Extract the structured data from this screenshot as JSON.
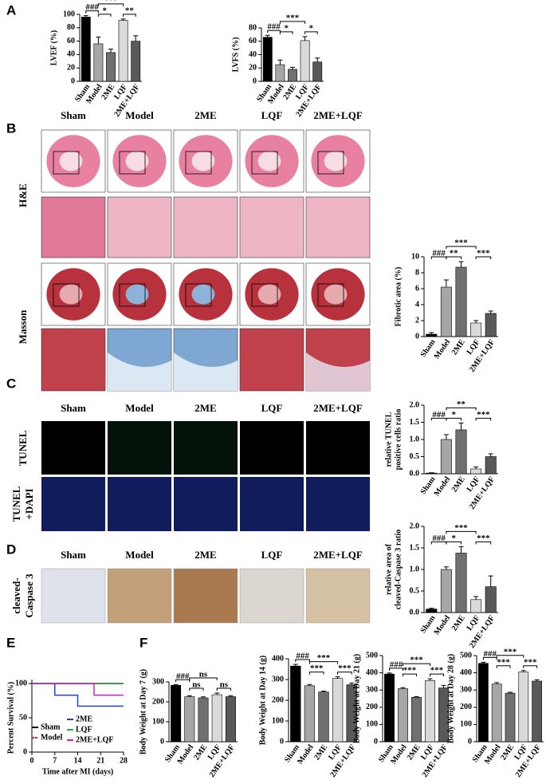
{
  "panel_labels": [
    "A",
    "B",
    "C",
    "D",
    "E",
    "F"
  ],
  "image_panels": [
    {
      "columns": [
        "Sham",
        "Model",
        "2ME",
        "LQF",
        "2ME+LQF"
      ],
      "rows": [
        [
          "H&E"
        ],
        [
          "Masson"
        ]
      ]
    },
    {
      "columns": [
        "Sham",
        "Model",
        "2ME",
        "LQF",
        "2ME+LQF"
      ],
      "rows": [
        [
          "TUNEL"
        ],
        [
          "TUNEL",
          "+DAPI"
        ]
      ]
    },
    {
      "columns": [
        "Sham",
        "Model",
        "2ME",
        "LQF",
        "2ME+LQF"
      ],
      "rows": [
        [
          "cleaved-",
          "Caspase 3"
        ]
      ]
    }
  ],
  "chart_data": [
    {
      "type": "bar",
      "y_label": [
        "LVEF (%)"
      ],
      "categories": [
        "Sham",
        "Model",
        "2ME",
        "LQF",
        "2ME+LQF"
      ],
      "values": [
        96,
        56,
        43,
        91,
        60
      ],
      "errors": [
        2,
        10,
        5,
        2,
        8
      ],
      "colors": [
        "#000000",
        "#a6a6a6",
        "#707070",
        "#d9d9d9",
        "#595959"
      ],
      "ylim": [
        0,
        100
      ],
      "yticks": [
        0,
        20,
        40,
        60,
        80,
        100
      ],
      "significance": [
        "###",
        "***",
        "*",
        "**"
      ]
    },
    {
      "type": "bar",
      "y_label": [
        "LVFS (%)"
      ],
      "categories": [
        "Sham",
        "Model",
        "2ME",
        "LQF",
        "2ME+LQF"
      ],
      "values": [
        66,
        25,
        18,
        61,
        29
      ],
      "errors": [
        3,
        7,
        3,
        6,
        6
      ],
      "colors": [
        "#000000",
        "#a6a6a6",
        "#707070",
        "#d9d9d9",
        "#595959"
      ],
      "ylim": [
        0,
        80
      ],
      "yticks": [
        0,
        20,
        40,
        60,
        80
      ],
      "significance": [
        "###",
        "***",
        "*",
        "*"
      ]
    },
    {
      "type": "bar",
      "y_label": [
        "Fibrotic area (%)"
      ],
      "categories": [
        "Sham",
        "Model",
        "2ME",
        "LQF",
        "2ME+LQF"
      ],
      "values": [
        0.3,
        6.2,
        8.7,
        1.7,
        2.9
      ],
      "errors": [
        0.2,
        0.9,
        0.7,
        0.3,
        0.3
      ],
      "colors": [
        "#000000",
        "#a6a6a6",
        "#707070",
        "#d9d9d9",
        "#595959"
      ],
      "ylim": [
        0,
        10
      ],
      "yticks": [
        0,
        2,
        4,
        6,
        8,
        10
      ],
      "significance": [
        "###",
        "***",
        "**",
        "***"
      ]
    },
    {
      "type": "bar",
      "y_label": [
        "relative TUNEL",
        "positive cells ratio"
      ],
      "categories": [
        "Sham",
        "Model",
        "2ME",
        "LQF",
        "2ME+LQF"
      ],
      "values": [
        0.02,
        1.0,
        1.28,
        0.14,
        0.5
      ],
      "errors": [
        0.01,
        0.14,
        0.2,
        0.06,
        0.08
      ],
      "colors": [
        "#000000",
        "#a6a6a6",
        "#707070",
        "#d9d9d9",
        "#595959"
      ],
      "ylim": [
        0,
        2
      ],
      "yticks": [
        {
          "value": 0,
          "label": "0.0"
        },
        {
          "value": 0.5,
          "label": "0.5"
        },
        {
          "value": 1,
          "label": "1.0"
        },
        {
          "value": 1.5,
          "label": "1.5"
        },
        {
          "value": 2,
          "label": "2.0"
        }
      ],
      "significance": [
        "###",
        "**",
        "*",
        "***"
      ]
    },
    {
      "type": "bar",
      "y_label": [
        "relative area of",
        "cleaved-Caspase 3 ratio"
      ],
      "categories": [
        "Sham",
        "Model",
        "2ME",
        "LQF",
        "2ME+LQF"
      ],
      "values": [
        0.08,
        1.0,
        1.38,
        0.3,
        0.6
      ],
      "errors": [
        0.02,
        0.06,
        0.15,
        0.07,
        0.25
      ],
      "colors": [
        "#000000",
        "#a6a6a6",
        "#707070",
        "#d9d9d9",
        "#595959"
      ],
      "ylim": [
        0,
        2
      ],
      "yticks": [
        {
          "value": 0,
          "label": "0.0"
        },
        {
          "value": 0.5,
          "label": "0.5"
        },
        {
          "value": 1,
          "label": "1.0"
        },
        {
          "value": 1.5,
          "label": "1.5"
        },
        {
          "value": 2,
          "label": "2.0"
        }
      ],
      "significance": [
        "###",
        "***",
        "*",
        "***"
      ]
    },
    {
      "type": "line",
      "x_label": "Time after MI (days)",
      "y_label": [
        "Percent Survival (%)"
      ],
      "xlim": [
        0,
        28
      ],
      "xticks": [
        0,
        7,
        14,
        21,
        28
      ],
      "ylim": [
        0,
        100
      ],
      "yticks": [
        0,
        50,
        100
      ],
      "series": [
        {
          "name": "Sham",
          "color": "#000000",
          "x": [
            0,
            28
          ],
          "values": [
            100,
            100
          ]
        },
        {
          "name": "Model",
          "color": "#e02020",
          "dashed": true,
          "x": [
            0,
            28
          ],
          "values": [
            100,
            100
          ]
        },
        {
          "name": "2ME",
          "color": "#2040e0",
          "x": [
            0,
            7,
            7,
            14,
            14,
            28
          ],
          "values": [
            100,
            100,
            83,
            83,
            67,
            67
          ]
        },
        {
          "name": "LQF",
          "color": "#20b040",
          "x": [
            0,
            28
          ],
          "values": [
            100,
            100
          ]
        },
        {
          "name": "2ME+LQF",
          "color": "#d020d0",
          "x": [
            0,
            19,
            19,
            28
          ],
          "values": [
            100,
            100,
            83,
            83
          ]
        }
      ]
    },
    {
      "type": "bar",
      "y_label": [
        "Body Weight at Day 7 (g)"
      ],
      "categories": [
        "Sham",
        "Model",
        "2ME",
        "LQF",
        "2ME+LQF"
      ],
      "values": [
        283,
        226,
        220,
        236,
        226
      ],
      "errors": [
        4,
        5,
        5,
        8,
        5
      ],
      "colors": [
        "#000000",
        "#a6a6a6",
        "#707070",
        "#d9d9d9",
        "#595959"
      ],
      "ylim": [
        0,
        300
      ],
      "yticks": [
        0,
        100,
        200,
        300
      ],
      "significance": [
        "###",
        "ns",
        "ns",
        "ns"
      ]
    },
    {
      "type": "bar",
      "y_label": [
        "Body Weight at Day 14 (g)"
      ],
      "categories": [
        "Sham",
        "Model",
        "2ME",
        "LQF",
        "2ME+LQF"
      ],
      "values": [
        365,
        270,
        240,
        305,
        275
      ],
      "errors": [
        8,
        6,
        4,
        8,
        8
      ],
      "colors": [
        "#000000",
        "#a6a6a6",
        "#707070",
        "#d9d9d9",
        "#595959"
      ],
      "ylim": [
        0,
        400
      ],
      "yticks": [
        0,
        100,
        200,
        300,
        400
      ],
      "significance": [
        "###",
        "***",
        "***",
        "***"
      ]
    },
    {
      "type": "bar",
      "y_label": [
        "Body Weight at Day 21 (g)"
      ],
      "categories": [
        "Sham",
        "Model",
        "2ME",
        "LQF",
        "2ME+LQF"
      ],
      "values": [
        393,
        308,
        258,
        355,
        312
      ],
      "errors": [
        6,
        6,
        4,
        10,
        15
      ],
      "colors": [
        "#000000",
        "#a6a6a6",
        "#707070",
        "#d9d9d9",
        "#595959"
      ],
      "ylim": [
        0,
        500
      ],
      "yticks": [
        0,
        100,
        200,
        300,
        400,
        500
      ],
      "significance": [
        "###",
        "***",
        "***",
        "***"
      ]
    },
    {
      "type": "bar",
      "y_label": [
        "Body Weight at Day 28 (g)"
      ],
      "categories": [
        "Sham",
        "Model",
        "2ME",
        "LQF",
        "2ME+LQF"
      ],
      "values": [
        455,
        335,
        282,
        405,
        352
      ],
      "errors": [
        6,
        8,
        5,
        8,
        8
      ],
      "colors": [
        "#000000",
        "#a6a6a6",
        "#707070",
        "#d9d9d9",
        "#595959"
      ],
      "ylim": [
        0,
        500
      ],
      "yticks": [
        0,
        100,
        200,
        300,
        400,
        500
      ],
      "significance": [
        "###",
        "***",
        "***",
        "***"
      ]
    }
  ]
}
